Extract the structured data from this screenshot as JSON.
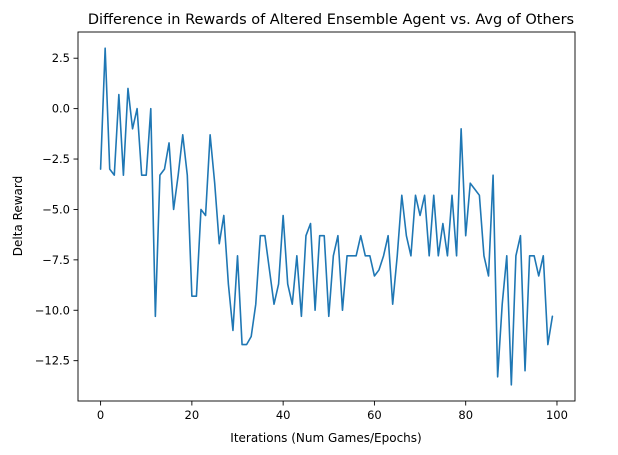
{
  "chart_data": {
    "type": "line",
    "title": "Difference in Rewards of Altered Ensemble Agent vs. Avg of Others",
    "xlabel": "Iterations (Num Games/Epochs)",
    "ylabel": "Delta Reward",
    "xlim": [
      -4.95,
      103.95
    ],
    "ylim": [
      -14.5,
      3.8
    ],
    "xticks": [
      0,
      20,
      40,
      60,
      80,
      100
    ],
    "xtick_labels": [
      "0",
      "20",
      "40",
      "60",
      "80",
      "100"
    ],
    "yticks": [
      2.5,
      0.0,
      -2.5,
      -5.0,
      -7.5,
      -10.0,
      -12.5
    ],
    "ytick_labels": [
      "2.5",
      "0.0",
      "−2.5",
      "−5.0",
      "−7.5",
      "−10.0",
      "−12.5"
    ],
    "grid": false,
    "series": [
      {
        "color": "#1f77b4",
        "x": [
          0,
          1,
          2,
          3,
          4,
          5,
          6,
          7,
          8,
          9,
          10,
          11,
          12,
          13,
          14,
          15,
          16,
          17,
          18,
          19,
          20,
          21,
          22,
          23,
          24,
          25,
          26,
          27,
          28,
          29,
          30,
          31,
          32,
          33,
          34,
          35,
          36,
          37,
          38,
          39,
          40,
          41,
          42,
          43,
          44,
          45,
          46,
          47,
          48,
          49,
          50,
          51,
          52,
          53,
          54,
          55,
          56,
          57,
          58,
          59,
          60,
          61,
          62,
          63,
          64,
          65,
          66,
          67,
          68,
          69,
          70,
          71,
          72,
          73,
          74,
          75,
          76,
          77,
          78,
          79,
          80,
          81,
          82,
          83,
          84,
          85,
          86,
          87,
          88,
          89,
          90,
          91,
          92,
          93,
          94,
          95,
          96,
          97,
          98,
          99
        ],
        "values": [
          -3.0,
          3.0,
          -3.0,
          -3.3,
          0.7,
          -3.3,
          1.0,
          -1.0,
          0.0,
          -3.3,
          -3.3,
          0.0,
          -10.3,
          -3.3,
          -3.0,
          -1.7,
          -5.0,
          -3.3,
          -1.3,
          -3.3,
          -9.3,
          -9.3,
          -5.0,
          -5.3,
          -1.3,
          -3.7,
          -6.7,
          -5.3,
          -8.7,
          -11.0,
          -7.3,
          -11.7,
          -11.7,
          -11.3,
          -9.7,
          -6.3,
          -6.3,
          -8.0,
          -9.7,
          -8.7,
          -5.3,
          -8.7,
          -9.7,
          -7.3,
          -10.3,
          -6.3,
          -5.7,
          -10.0,
          -6.3,
          -6.3,
          -10.3,
          -7.3,
          -6.3,
          -10.0,
          -7.3,
          -7.3,
          -7.3,
          -6.3,
          -7.3,
          -7.3,
          -8.3,
          -8.0,
          -7.3,
          -6.3,
          -9.7,
          -7.3,
          -4.3,
          -6.3,
          -7.3,
          -4.3,
          -5.3,
          -4.3,
          -7.3,
          -4.3,
          -7.3,
          -5.7,
          -7.3,
          -4.3,
          -7.3,
          -1.0,
          -6.3,
          -3.7,
          -4.0,
          -4.3,
          -7.3,
          -8.3,
          -3.3,
          -13.3,
          -9.7,
          -7.3,
          -13.7,
          -7.3,
          -6.3,
          -13.0,
          -7.3,
          -7.3,
          -8.3,
          -7.3,
          -11.7,
          -10.3
        ]
      }
    ]
  }
}
